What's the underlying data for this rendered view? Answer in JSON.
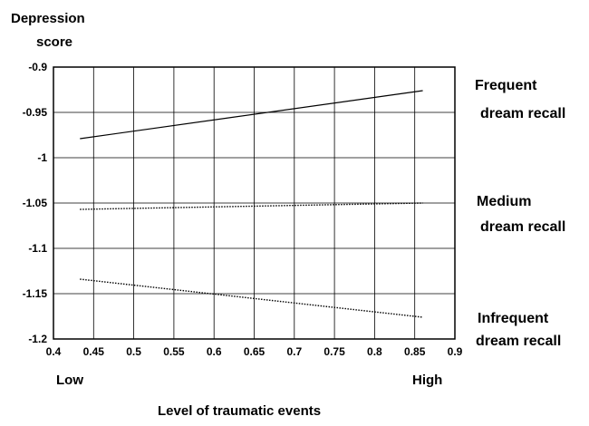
{
  "chart_data": {
    "type": "line",
    "ylabel_line1": "Depression",
    "ylabel_line2": "score",
    "xlabel": "Level of traumatic events",
    "x_end_labels": {
      "low": "Low",
      "high": "High"
    },
    "xlim": [
      0.4,
      0.9
    ],
    "ylim": [
      -1.2,
      -0.9
    ],
    "xticks": [
      0.4,
      0.45,
      0.5,
      0.55,
      0.6,
      0.65,
      0.7,
      0.75,
      0.8,
      0.85,
      0.9
    ],
    "xtick_labels": [
      "0.4",
      "0.45",
      "0.5",
      "0.55",
      "0.6",
      "0.65",
      "0.7",
      "0.75",
      "0.8",
      "0.85",
      "0.9"
    ],
    "yticks": [
      -0.9,
      -0.95,
      -1,
      -1.05,
      -1.1,
      -1.15,
      -1.2
    ],
    "ytick_labels": [
      "-0.9",
      "-0.95",
      "-1",
      "-1.05",
      "-1.1",
      "-1.15",
      "-1.2"
    ],
    "grid": true,
    "series": [
      {
        "name": "Frequent dream recall",
        "label_line1": "Frequent",
        "label_line2": "dream recall",
        "style": "solid",
        "x": [
          0.433,
          0.86
        ],
        "y": [
          -0.979,
          -0.926
        ]
      },
      {
        "name": "Medium dream recall",
        "label_line1": "Medium",
        "label_line2": "dream recall",
        "style": "dotted",
        "x": [
          0.433,
          0.86
        ],
        "y": [
          -1.057,
          -1.05
        ]
      },
      {
        "name": "Infrequent dream recall",
        "label_line1": "Infrequent",
        "label_line2": "dream recall",
        "style": "dotted",
        "x": [
          0.433,
          0.86
        ],
        "y": [
          -1.134,
          -1.176
        ]
      }
    ]
  }
}
